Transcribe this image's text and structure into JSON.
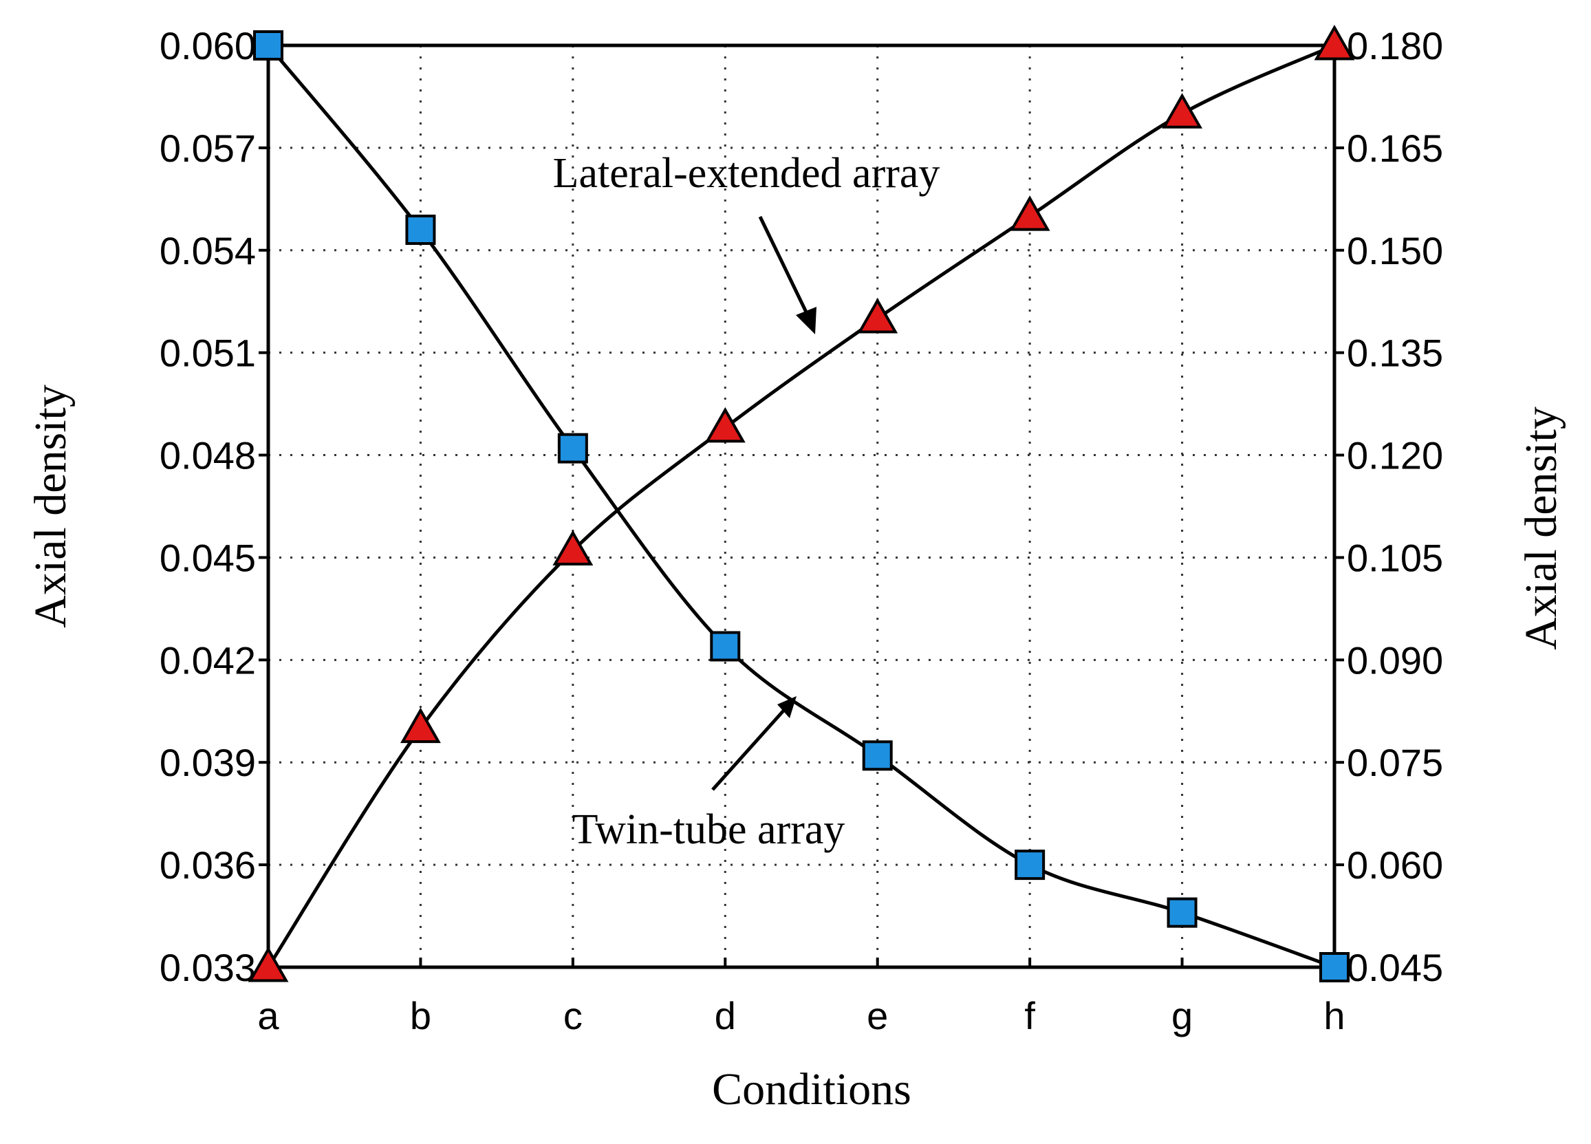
{
  "chart_data": {
    "type": "line",
    "categories": [
      "a",
      "b",
      "c",
      "d",
      "e",
      "f",
      "g",
      "h"
    ],
    "xlabel": "Conditions",
    "ylabel_left": "Axial density",
    "ylabel_right": "Axial density",
    "ylim_left": [
      0.033,
      0.06
    ],
    "ylim_right": [
      0.045,
      0.18
    ],
    "yticks_left": [
      "0.033",
      "0.036",
      "0.039",
      "0.042",
      "0.045",
      "0.048",
      "0.051",
      "0.054",
      "0.057",
      "0.060"
    ],
    "yticks_right": [
      "0.045",
      "0.060",
      "0.075",
      "0.090",
      "0.105",
      "0.120",
      "0.135",
      "0.150",
      "0.165",
      "0.180"
    ],
    "grid": true,
    "series": [
      {
        "name": "Twin-tube array",
        "axis": "left",
        "marker": "square",
        "color": "#1e90e0",
        "values": [
          0.06,
          0.0546,
          0.0482,
          0.0424,
          0.0392,
          0.036,
          0.0346,
          0.033
        ]
      },
      {
        "name": "Lateral-extended array",
        "axis": "right",
        "marker": "triangle",
        "color": "#e01818",
        "values": [
          0.045,
          0.08,
          0.106,
          0.124,
          0.14,
          0.155,
          0.17,
          0.18
        ]
      }
    ],
    "annotations": {
      "lateral": "Lateral-extended  array",
      "twin": "Twin-tube  array"
    }
  }
}
